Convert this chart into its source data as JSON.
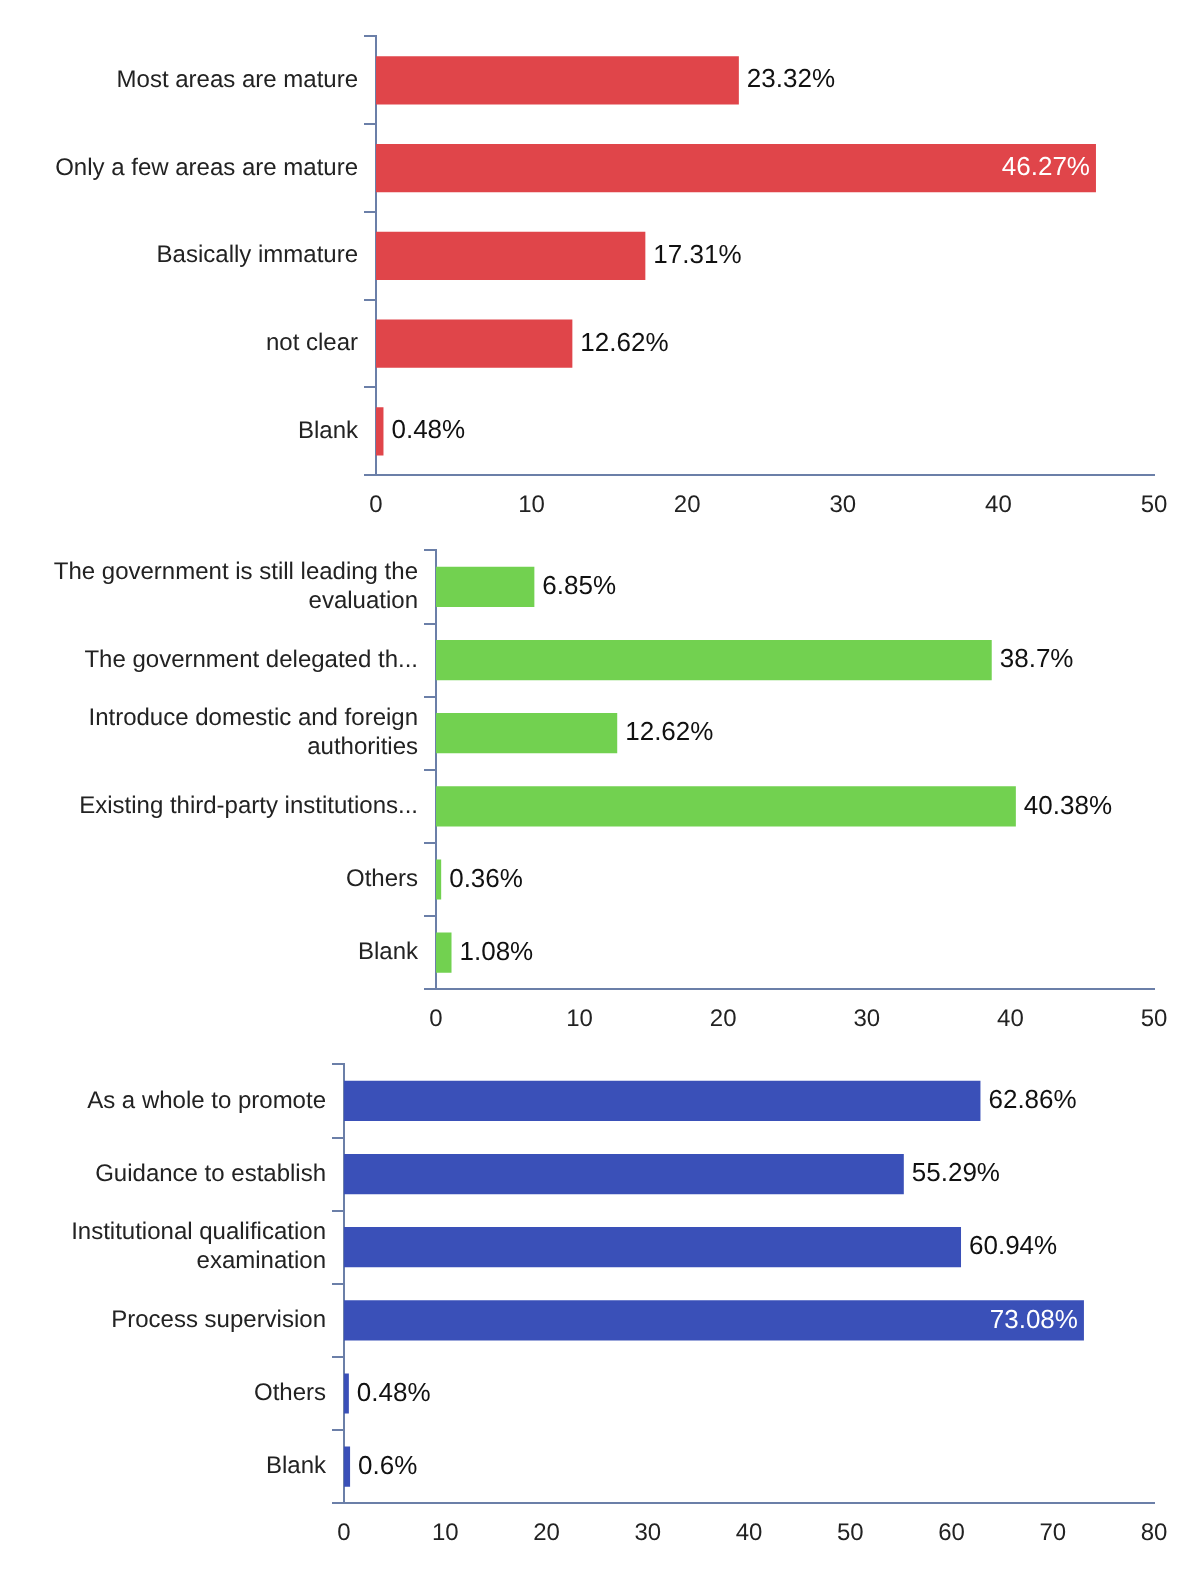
{
  "chart_data": [
    {
      "type": "bar",
      "orientation": "horizontal",
      "categories": [
        "Most areas are mature",
        "Only a few areas are mature",
        "Basically immature",
        "not clear",
        "Blank"
      ],
      "series": [
        {
          "color": "#e0454a",
          "values": [
            23.32,
            46.27,
            17.31,
            12.62,
            0.48
          ],
          "value_labels": [
            "23.32%",
            "46.27%",
            "17.31%",
            "12.62%",
            "0.48%"
          ]
        }
      ],
      "xlim": [
        0,
        50
      ],
      "xticks": [
        0,
        10,
        20,
        30,
        40,
        50
      ],
      "grid": false,
      "legend": false
    },
    {
      "type": "bar",
      "orientation": "horizontal",
      "categories": [
        "The government is still leading the evaluation",
        "The government delegated th...",
        "Introduce domestic and foreign authorities",
        "Existing third-party institutions...",
        "Others",
        "Blank"
      ],
      "series": [
        {
          "color": "#72d150",
          "values": [
            6.85,
            38.7,
            12.62,
            40.38,
            0.36,
            1.08
          ],
          "value_labels": [
            "6.85%",
            "38.7%",
            "12.62%",
            "40.38%",
            "0.36%",
            "1.08%"
          ]
        }
      ],
      "xlim": [
        0,
        50
      ],
      "xticks": [
        0,
        10,
        20,
        30,
        40,
        50
      ],
      "grid": false,
      "legend": false
    },
    {
      "type": "bar",
      "orientation": "horizontal",
      "categories": [
        "As a whole to promote",
        "Guidance to establish",
        "Institutional qualification examination",
        "Process supervision",
        "Others",
        "Blank"
      ],
      "series": [
        {
          "color": "#3a50b8",
          "values": [
            62.86,
            55.29,
            60.94,
            73.08,
            0.48,
            0.6
          ],
          "value_labels": [
            "62.86%",
            "55.29%",
            "60.94%",
            "73.08%",
            "0.48%",
            "0.6%"
          ]
        }
      ],
      "xlim": [
        0,
        80
      ],
      "xticks": [
        0,
        10,
        20,
        30,
        40,
        50,
        60,
        70,
        80
      ],
      "grid": false,
      "legend": false
    }
  ]
}
